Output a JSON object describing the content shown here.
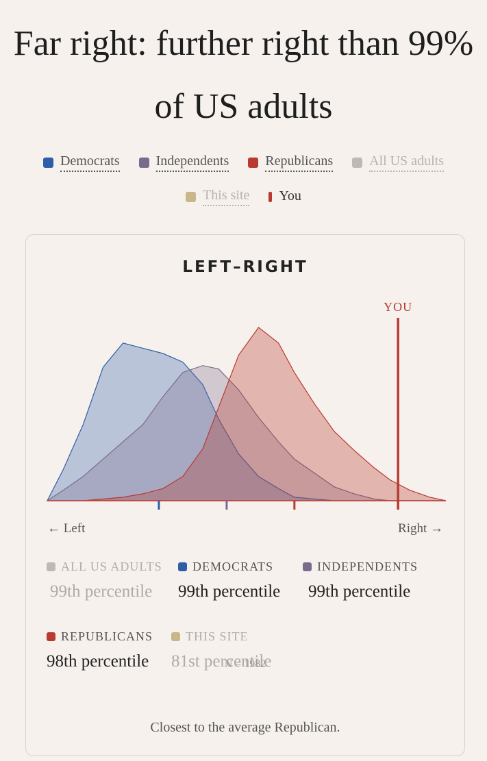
{
  "headline": "Far right: further right than 99% of US adults",
  "legend": [
    {
      "label": "Democrats",
      "color": "#2e5ea8",
      "muted": false
    },
    {
      "label": "Independents",
      "color": "#7a6b8e",
      "muted": false
    },
    {
      "label": "Republicans",
      "color": "#b83a30",
      "muted": false
    },
    {
      "label": "All US adults",
      "color": "#bdb9b5",
      "muted": true
    },
    {
      "label": "This site",
      "color": "#c9b689",
      "muted": true
    },
    {
      "label": "You",
      "color": "#b83a30",
      "muted": false
    }
  ],
  "card": {
    "title": "LEFT–RIGHT",
    "you_label": "YOU",
    "left_label": "← Left",
    "right_label": "Right →",
    "n_label": "N = 1982",
    "summary": "Closest to the average Republican."
  },
  "chart_data": {
    "type": "area",
    "title": "LEFT–RIGHT",
    "x": [
      0,
      0.04,
      0.09,
      0.14,
      0.19,
      0.24,
      0.29,
      0.34,
      0.39,
      0.43,
      0.48,
      0.53,
      0.58,
      0.62,
      0.67,
      0.72,
      0.77,
      0.82,
      0.86,
      0.91,
      0.96,
      1
    ],
    "series": [
      {
        "name": "Democrats",
        "color": "#2e5ea8",
        "values": [
          0,
          0.18,
          0.44,
          0.77,
          0.91,
          0.88,
          0.85,
          0.8,
          0.67,
          0.47,
          0.27,
          0.14,
          0.07,
          0.02,
          0.01,
          0,
          0,
          0,
          0,
          0,
          0,
          0
        ]
      },
      {
        "name": "Independents",
        "color": "#7a6b8e",
        "values": [
          0,
          0.06,
          0.14,
          0.24,
          0.34,
          0.44,
          0.6,
          0.74,
          0.78,
          0.76,
          0.64,
          0.48,
          0.34,
          0.24,
          0.16,
          0.08,
          0.04,
          0.01,
          0,
          0,
          0,
          0
        ]
      },
      {
        "name": "Republicans",
        "color": "#b83a30",
        "values": [
          0,
          0,
          0,
          0.01,
          0.02,
          0.04,
          0.07,
          0.14,
          0.3,
          0.54,
          0.84,
          1.0,
          0.91,
          0.74,
          0.56,
          0.4,
          0.29,
          0.19,
          0.12,
          0.06,
          0.02,
          0
        ]
      }
    ],
    "means": [
      {
        "name": "Democrats",
        "x": 0.28,
        "color": "#2e5ea8"
      },
      {
        "name": "Independents",
        "x": 0.45,
        "color": "#7a6b8e"
      },
      {
        "name": "Republicans",
        "x": 0.62,
        "color": "#b83a30"
      }
    ],
    "you_x": 0.88,
    "xlabel": "",
    "ylabel": "",
    "grid": false
  },
  "stats": [
    {
      "label": "ALL US ADULTS",
      "value": "99th percentile",
      "color": "#bdb9b5",
      "faded": true
    },
    {
      "label": "DEMOCRATS",
      "value": "99th percentile",
      "color": "#2e5ea8",
      "faded": false
    },
    {
      "label": "INDEPENDENTS",
      "value": "99th percentile",
      "color": "#7a6b8e",
      "faded": false
    },
    {
      "label": "REPUBLICANS",
      "value": "98th percentile",
      "color": "#b83a30",
      "faded": false
    },
    {
      "label": "THIS SITE",
      "value": "81st percentile",
      "color": "#c9b689",
      "faded": true
    }
  ]
}
